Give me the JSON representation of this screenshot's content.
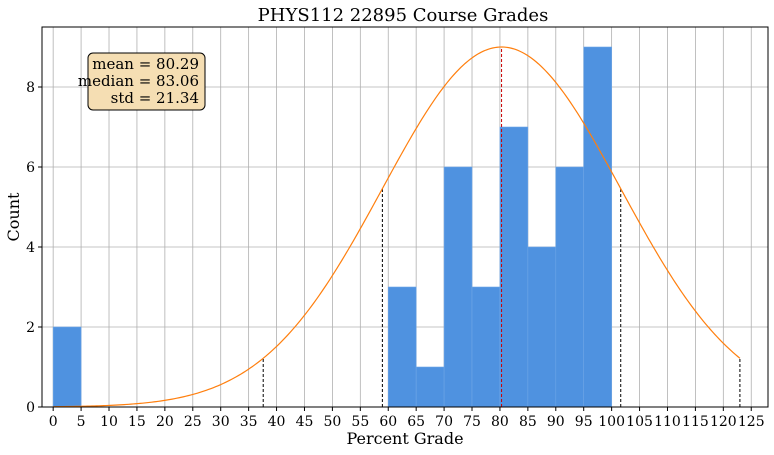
{
  "chart_data": {
    "type": "bar",
    "title": "PHYS112 22895 Course Grades",
    "xlabel": "Percent Grade",
    "ylabel": "Count",
    "xlim": [
      -2,
      128
    ],
    "ylim": [
      0,
      9.5
    ],
    "xticks": [
      0,
      5,
      10,
      15,
      20,
      25,
      30,
      35,
      40,
      45,
      50,
      55,
      60,
      65,
      70,
      75,
      80,
      85,
      90,
      95,
      100,
      105,
      110,
      115,
      120,
      125
    ],
    "yticks": [
      0,
      2,
      4,
      6,
      8
    ],
    "grid": true,
    "bins": [
      {
        "x0": 0,
        "x1": 5,
        "count": 2
      },
      {
        "x0": 60,
        "x1": 65,
        "count": 3
      },
      {
        "x0": 65,
        "x1": 70,
        "count": 1
      },
      {
        "x0": 70,
        "x1": 75,
        "count": 6
      },
      {
        "x0": 75,
        "x1": 80,
        "count": 3
      },
      {
        "x0": 80,
        "x1": 85,
        "count": 7
      },
      {
        "x0": 85,
        "x1": 90,
        "count": 4
      },
      {
        "x0": 90,
        "x1": 95,
        "count": 6
      },
      {
        "x0": 95,
        "x1": 100,
        "count": 9
      }
    ],
    "bar_color": "#4f92e0",
    "curve_color": "#ff7f0e",
    "normal_curve": {
      "mean": 80.29,
      "std": 21.34,
      "peak": 9
    },
    "vlines": [
      {
        "x": 80.29,
        "style": "dashed",
        "color": "#cc0000"
      },
      {
        "x": 58.95,
        "style": "dashed",
        "color": "#000000"
      },
      {
        "x": 101.63,
        "style": "dashed",
        "color": "#000000"
      },
      {
        "x": 37.61,
        "style": "dashed",
        "color": "#000000"
      },
      {
        "x": 122.97,
        "style": "dashed",
        "color": "#000000"
      }
    ],
    "stats_box": {
      "lines": [
        "mean = 80.29",
        "median = 83.06",
        "std = 21.34"
      ],
      "placement": "top-left",
      "fill": "#f5deb3"
    }
  }
}
